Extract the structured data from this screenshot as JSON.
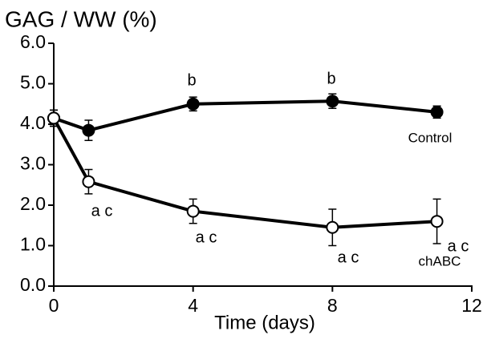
{
  "chart_data": {
    "type": "line",
    "title": "GAG / WW (%)",
    "x_label": "Time (days)",
    "x": [
      0,
      1,
      4,
      8,
      11
    ],
    "series": [
      {
        "name": "Control",
        "color": "#000000",
        "marker_fill": "#000000",
        "values": [
          4.15,
          3.85,
          4.5,
          4.57,
          4.3
        ],
        "errors": [
          0.2,
          0.25,
          0.17,
          0.18,
          0.15
        ]
      },
      {
        "name": "chABC",
        "color": "#000000",
        "marker_fill": "#ffffff",
        "values": [
          4.15,
          2.58,
          1.85,
          1.45,
          1.6
        ],
        "errors": [
          0.2,
          0.3,
          0.3,
          0.45,
          0.55
        ]
      }
    ],
    "annotations": [
      "b",
      "b",
      "a c",
      "a c",
      "a c",
      "a c"
    ],
    "xlim": [
      0,
      12
    ],
    "xticks": [
      0,
      4,
      8,
      12
    ],
    "ylim": [
      0,
      6
    ],
    "yticks": [
      {
        "value": 0,
        "label": "0.0"
      },
      {
        "value": 1,
        "label": "1.0"
      },
      {
        "value": 2,
        "label": "2.0"
      },
      {
        "value": 3,
        "label": "3.0"
      },
      {
        "value": 4,
        "label": "4.0"
      },
      {
        "value": 5,
        "label": "5.0"
      },
      {
        "value": 6,
        "label": "6.0"
      }
    ]
  }
}
